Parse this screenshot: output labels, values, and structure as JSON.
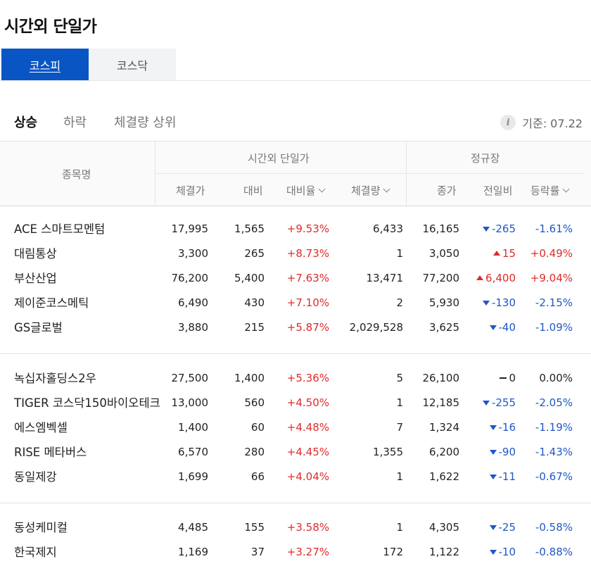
{
  "page_title": "시간외 단일가",
  "market_tabs": [
    {
      "label": "코스피",
      "active": true
    },
    {
      "label": "코스닥",
      "active": false
    }
  ],
  "sub_tabs": [
    {
      "label": "상승",
      "active": true
    },
    {
      "label": "하락",
      "active": false
    },
    {
      "label": "체결량 상위",
      "active": false
    }
  ],
  "basis": {
    "info_icon": "i",
    "label": "기준: 07.22"
  },
  "table": {
    "headers": {
      "name": "종목명",
      "group_afterhours": "시간외 단일가",
      "group_regular": "정규장",
      "price": "체결가",
      "change": "대비",
      "change_rate": "대비율",
      "volume": "체결량",
      "close": "종가",
      "prev_change": "전일비",
      "fluctuation": "등락률"
    },
    "groups": [
      [
        {
          "name": "ACE 스마트모멘텀",
          "price": "17,995",
          "change": "1,565",
          "rate": "+9.53%",
          "volume": "6,433",
          "close": "16,165",
          "prev": "-265",
          "dir": "down",
          "fluct": "-1.61%"
        },
        {
          "name": "대림통상",
          "price": "3,300",
          "change": "265",
          "rate": "+8.73%",
          "volume": "1",
          "close": "3,050",
          "prev": "15",
          "dir": "up",
          "fluct": "+0.49%"
        },
        {
          "name": "부산산업",
          "price": "76,200",
          "change": "5,400",
          "rate": "+7.63%",
          "volume": "13,471",
          "close": "77,200",
          "prev": "6,400",
          "dir": "up",
          "fluct": "+9.04%"
        },
        {
          "name": "제이준코스메틱",
          "price": "6,490",
          "change": "430",
          "rate": "+7.10%",
          "volume": "2",
          "close": "5,930",
          "prev": "-130",
          "dir": "down",
          "fluct": "-2.15%"
        },
        {
          "name": "GS글로벌",
          "price": "3,880",
          "change": "215",
          "rate": "+5.87%",
          "volume": "2,029,528",
          "close": "3,625",
          "prev": "-40",
          "dir": "down",
          "fluct": "-1.09%"
        }
      ],
      [
        {
          "name": "녹십자홀딩스2우",
          "price": "27,500",
          "change": "1,400",
          "rate": "+5.36%",
          "volume": "5",
          "close": "26,100",
          "prev": "0",
          "dir": "flat",
          "fluct": "0.00%"
        },
        {
          "name": "TIGER 코스닥150바이오테크",
          "price": "13,000",
          "change": "560",
          "rate": "+4.50%",
          "volume": "1",
          "close": "12,185",
          "prev": "-255",
          "dir": "down",
          "fluct": "-2.05%"
        },
        {
          "name": "에스엠벡셀",
          "price": "1,400",
          "change": "60",
          "rate": "+4.48%",
          "volume": "7",
          "close": "1,324",
          "prev": "-16",
          "dir": "down",
          "fluct": "-1.19%"
        },
        {
          "name": "RISE 메타버스",
          "price": "6,570",
          "change": "280",
          "rate": "+4.45%",
          "volume": "1,355",
          "close": "6,200",
          "prev": "-90",
          "dir": "down",
          "fluct": "-1.43%"
        },
        {
          "name": "동일제강",
          "price": "1,699",
          "change": "66",
          "rate": "+4.04%",
          "volume": "1",
          "close": "1,622",
          "prev": "-11",
          "dir": "down",
          "fluct": "-0.67%"
        }
      ],
      [
        {
          "name": "동성케미컬",
          "price": "4,485",
          "change": "155",
          "rate": "+3.58%",
          "volume": "1",
          "close": "4,305",
          "prev": "-25",
          "dir": "down",
          "fluct": "-0.58%"
        },
        {
          "name": "한국제지",
          "price": "1,169",
          "change": "37",
          "rate": "+3.27%",
          "volume": "172",
          "close": "1,122",
          "prev": "-10",
          "dir": "down",
          "fluct": "-0.88%"
        }
      ]
    ]
  },
  "colors": {
    "accent": "#0a55c4",
    "up": "#e02a2a",
    "down": "#1e58c6"
  }
}
